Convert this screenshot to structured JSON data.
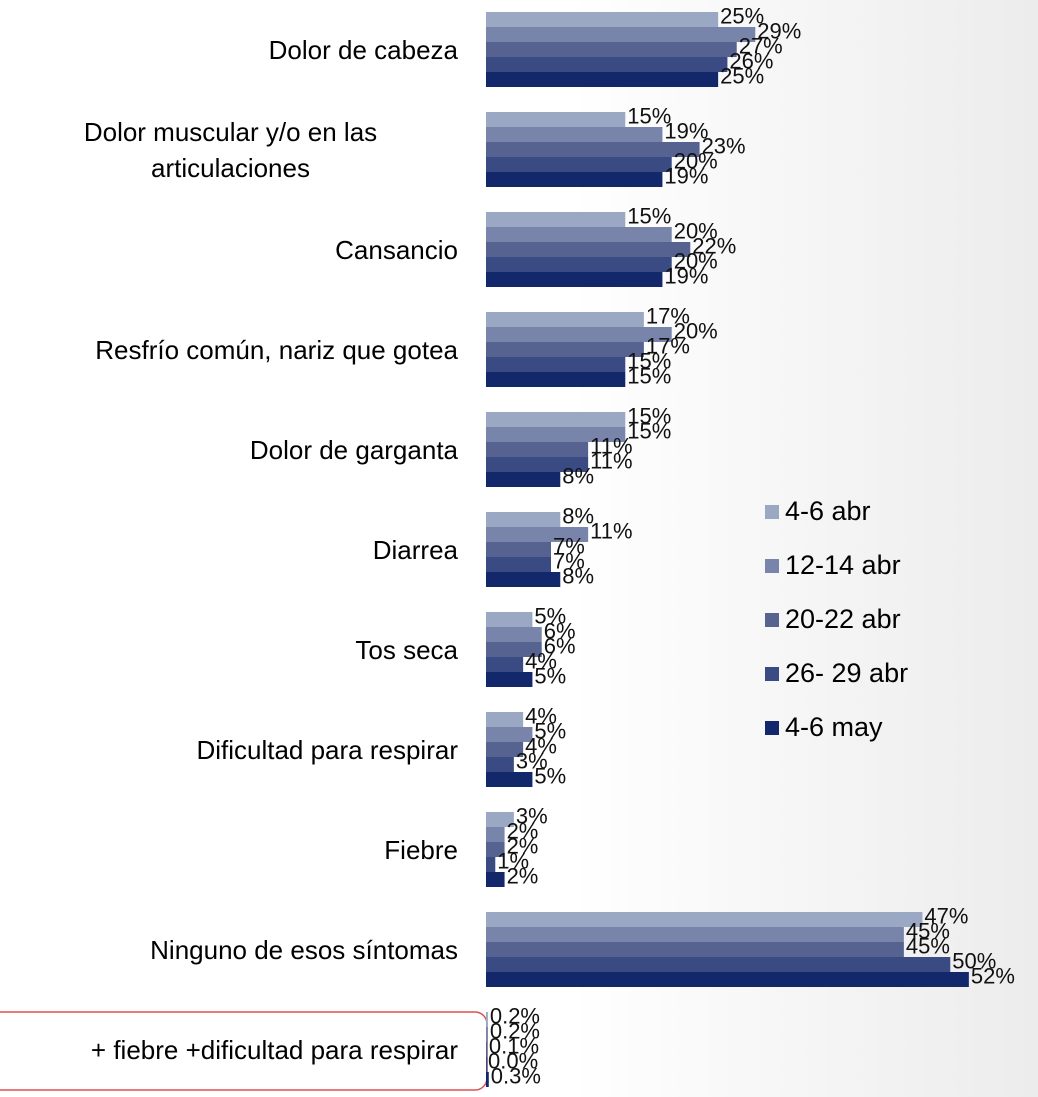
{
  "chart_data": {
    "type": "hbar",
    "categories": [
      "Dolor de cabeza",
      "Dolor muscular y/o en las articulaciones",
      "Cansancio",
      "Resfrío común, nariz que gotea",
      "Dolor de garganta",
      "Diarrea",
      "Tos seca",
      "Dificultad para respirar",
      "Fiebre",
      "Ninguno de esos síntomas",
      "+ fiebre +dificultad para respirar"
    ],
    "xlim": [
      0,
      56
    ],
    "legend": "right",
    "series": [
      {
        "name": "4-6 abr",
        "color": "#9aa8c4",
        "values": [
          25,
          15,
          15,
          17,
          15,
          8,
          5,
          4,
          3,
          47,
          0.2
        ],
        "value_labels": [
          "25%",
          "15%",
          "15%",
          "17%",
          "15%",
          "8%",
          "5%",
          "4%",
          "3%",
          "47%",
          "0.2%"
        ]
      },
      {
        "name": "12-14 abr",
        "color": "#7884aa",
        "values": [
          29,
          19,
          20,
          20,
          15,
          11,
          6,
          5,
          2,
          45,
          0.2
        ],
        "value_labels": [
          "29%",
          "19%",
          "20%",
          "20%",
          "15%",
          "11%",
          "6%",
          "5%",
          "2%",
          "45%",
          "0.2%"
        ]
      },
      {
        "name": "20-22 abr",
        "color": "#566391",
        "values": [
          27,
          23,
          22,
          17,
          11,
          7,
          6,
          4,
          2,
          45,
          0.1
        ],
        "value_labels": [
          "27%",
          "23%",
          "22%",
          "17%",
          "11%",
          "7%",
          "6%",
          "4%",
          "2%",
          "45%",
          "0.1%"
        ]
      },
      {
        "name": "26- 29 abr",
        "color": "#3a4a82",
        "values": [
          26,
          20,
          20,
          15,
          11,
          7,
          4,
          3,
          1,
          50,
          0.0
        ],
        "value_labels": [
          "26%",
          "20%",
          "20%",
          "15%",
          "11%",
          "7%",
          "4%",
          "3%",
          "1%",
          "50%",
          "0.0%"
        ]
      },
      {
        "name": "4-6 may",
        "color": "#13286b",
        "values": [
          25,
          19,
          19,
          15,
          8,
          8,
          5,
          5,
          2,
          52,
          0.3
        ],
        "value_labels": [
          "25%",
          "19%",
          "19%",
          "15%",
          "8%",
          "8%",
          "5%",
          "5%",
          "2%",
          "52%",
          "0.3%"
        ]
      }
    ]
  }
}
